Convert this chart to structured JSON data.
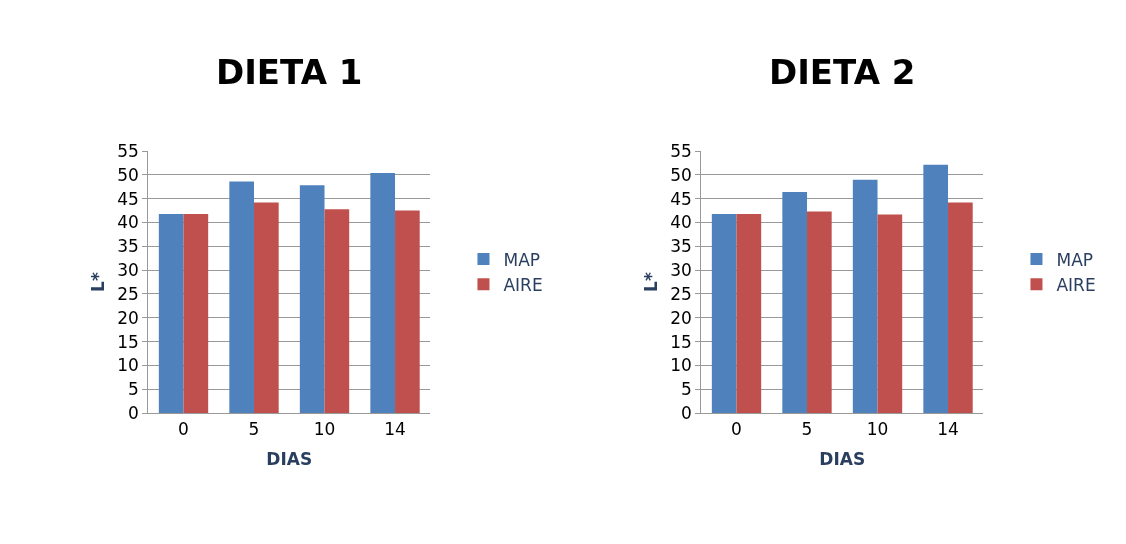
{
  "chart_data": [
    {
      "type": "bar",
      "title": "DIETA 1",
      "xlabel": "DIAS",
      "ylabel": "L*",
      "categories": [
        "0",
        "5",
        "10",
        "14"
      ],
      "series": [
        {
          "name": "MAP",
          "color": "#4f81bd",
          "values": [
            41.8,
            48.6,
            47.8,
            50.4
          ]
        },
        {
          "name": "AIRE",
          "color": "#c0504d",
          "values": [
            41.8,
            44.2,
            42.8,
            42.5
          ]
        }
      ],
      "ylim": [
        0,
        55
      ],
      "yticks": [
        0,
        5,
        10,
        15,
        20,
        25,
        30,
        35,
        40,
        45,
        50,
        55
      ],
      "grid": "y",
      "legend": "right"
    },
    {
      "type": "bar",
      "title": "DIETA 2",
      "xlabel": "DIAS",
      "ylabel": "L*",
      "categories": [
        "0",
        "5",
        "10",
        "14"
      ],
      "series": [
        {
          "name": "MAP",
          "color": "#4f81bd",
          "values": [
            41.8,
            46.4,
            49.0,
            52.1
          ]
        },
        {
          "name": "AIRE",
          "color": "#c0504d",
          "values": [
            41.8,
            42.3,
            41.7,
            44.2
          ]
        }
      ],
      "ylim": [
        0,
        55
      ],
      "yticks": [
        0,
        5,
        10,
        15,
        20,
        25,
        30,
        35,
        40,
        45,
        50,
        55
      ],
      "grid": "y",
      "legend": "right"
    }
  ]
}
